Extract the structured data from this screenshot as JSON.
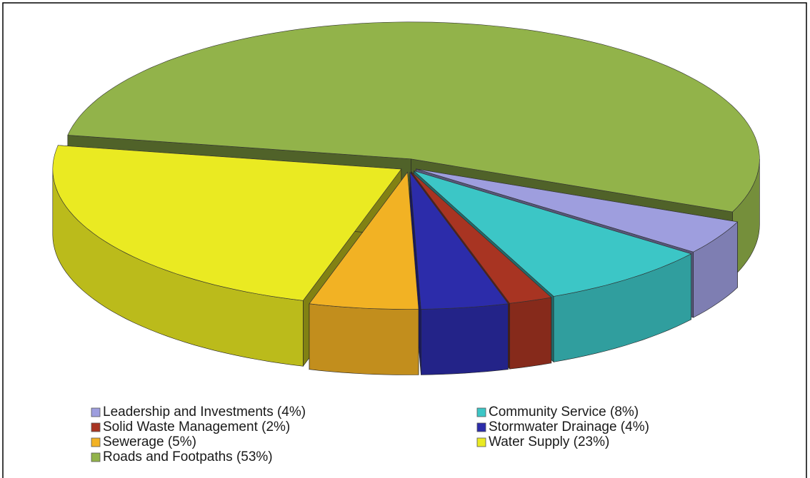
{
  "chart_data": {
    "type": "pie3d",
    "series": [
      {
        "name": "Roads and Footpaths (53%)",
        "color": "#92b34a",
        "values": [
          53
        ]
      },
      {
        "name": "Leadership and Investments (4%)",
        "color": "#9e9ede",
        "values": [
          4
        ]
      },
      {
        "name": "Community Service (8%)",
        "color": "#3cc6c6",
        "values": [
          8
        ]
      },
      {
        "name": "Solid Waste Management (2%)",
        "color": "#a83422",
        "values": [
          2
        ]
      },
      {
        "name": "Stormwater Drainage (4%)",
        "color": "#2c2caa",
        "values": [
          4
        ]
      },
      {
        "name": "Sewerage (5%)",
        "color": "#f2b224",
        "values": [
          5
        ]
      },
      {
        "name": "Water Supply (23%)",
        "color": "#eaea22",
        "values": [
          23
        ]
      }
    ]
  }
}
